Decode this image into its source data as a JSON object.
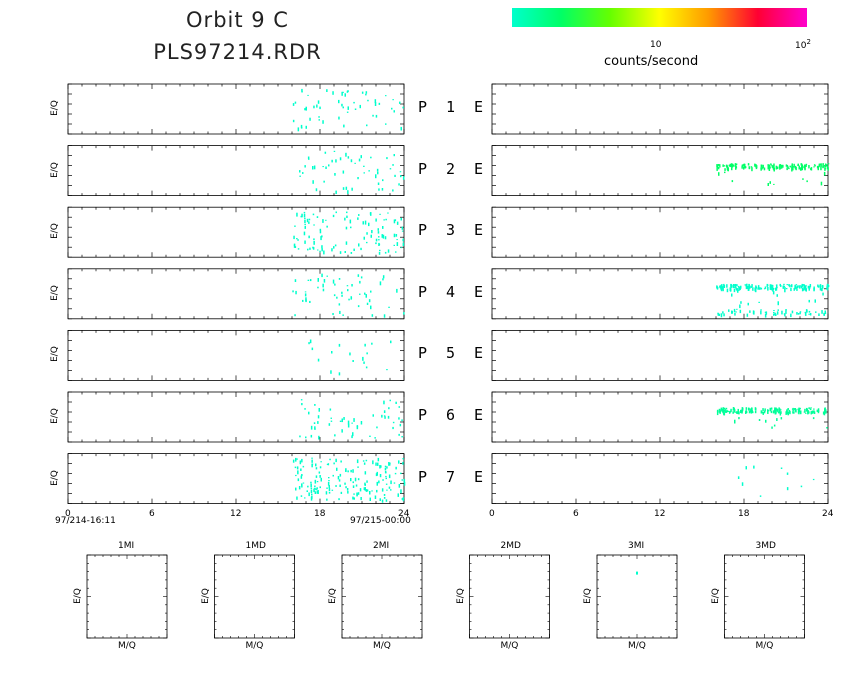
{
  "title_line1": "Orbit  9  C",
  "title_line2": "PLS97214.RDR",
  "colorbar": {
    "label": "counts/second",
    "tick1": "10",
    "tick2_base": "10",
    "tick2_exp": "2",
    "colors": [
      "#00ffcc",
      "#00ff66",
      "#66ff00",
      "#ffff00",
      "#ff9900",
      "#ff0033",
      "#ff00cc"
    ]
  },
  "left_start_label": "97/214-16:11",
  "left_end_label": "97/215-00:00",
  "ylabel": "E/Q",
  "xticks": [
    "0",
    "6",
    "12",
    "18",
    "24"
  ],
  "rows": [
    {
      "p": "P",
      "n": "1",
      "e": "E"
    },
    {
      "p": "P",
      "n": "2",
      "e": "E"
    },
    {
      "p": "P",
      "n": "3",
      "e": "E"
    },
    {
      "p": "P",
      "n": "4",
      "e": "E"
    },
    {
      "p": "P",
      "n": "5",
      "e": "E"
    },
    {
      "p": "P",
      "n": "6",
      "e": "E"
    },
    {
      "p": "P",
      "n": "7",
      "e": "E"
    }
  ],
  "small_panels": [
    {
      "title": "1MI",
      "ylabel": "E/Q",
      "xlabel": "M/Q"
    },
    {
      "title": "1MD",
      "ylabel": "E/Q",
      "xlabel": "M/Q"
    },
    {
      "title": "2MI",
      "ylabel": "E/Q",
      "xlabel": "M/Q"
    },
    {
      "title": "2MD",
      "ylabel": "E/Q",
      "xlabel": "M/Q"
    },
    {
      "title": "3MI",
      "ylabel": "E/Q",
      "xlabel": "M/Q"
    },
    {
      "title": "3MD",
      "ylabel": "E/Q",
      "xlabel": "M/Q"
    }
  ],
  "chart_data": {
    "type": "heatmap",
    "x_range": [
      0,
      24
    ],
    "x_ticks": [
      0,
      6,
      12,
      18,
      24
    ],
    "colors": {
      "low": "#00ffcc",
      "mid": "#00ff66"
    },
    "left_panels": [
      {
        "panel": "P1",
        "x_range": [
          16,
          24
        ],
        "color": "#00ffcc"
      },
      {
        "panel": "P2",
        "x_range": [
          16.5,
          24
        ],
        "color": "#00ffcc"
      },
      {
        "panel": "P3",
        "x_range": [
          16,
          24
        ],
        "color": "#00ffcc"
      },
      {
        "panel": "P4",
        "x_range": [
          16,
          24
        ],
        "color": "#00ffcc"
      },
      {
        "panel": "P5",
        "x_range": [
          17,
          23
        ],
        "color": "#00ffcc"
      },
      {
        "panel": "P6",
        "x_range": [
          16.5,
          24
        ],
        "color": "#00ffcc"
      },
      {
        "panel": "P7",
        "x_range": [
          16,
          24
        ],
        "color": "#00ffcc"
      }
    ],
    "right_panels": [
      {
        "panel": "E1",
        "x_range": null
      },
      {
        "panel": "E2",
        "x_range": [
          16,
          24
        ],
        "band_y": 0.35,
        "color": "#00ff66"
      },
      {
        "panel": "E3",
        "x_range": null
      },
      {
        "panel": "E4",
        "x_range": [
          16,
          24
        ],
        "band_y": 0.3,
        "band_y2": 0.8,
        "color": "#00ffcc"
      },
      {
        "panel": "E5",
        "x_range": null
      },
      {
        "panel": "E6",
        "x_range": [
          16,
          24
        ],
        "band_y": 0.3,
        "color": "#00ff99"
      },
      {
        "panel": "E7",
        "x_range": [
          17.5,
          24
        ],
        "color": "#00ffcc"
      }
    ],
    "small_panel_points": [
      {
        "panel": "3MI",
        "x": 0.5,
        "y": 0.2
      }
    ]
  }
}
